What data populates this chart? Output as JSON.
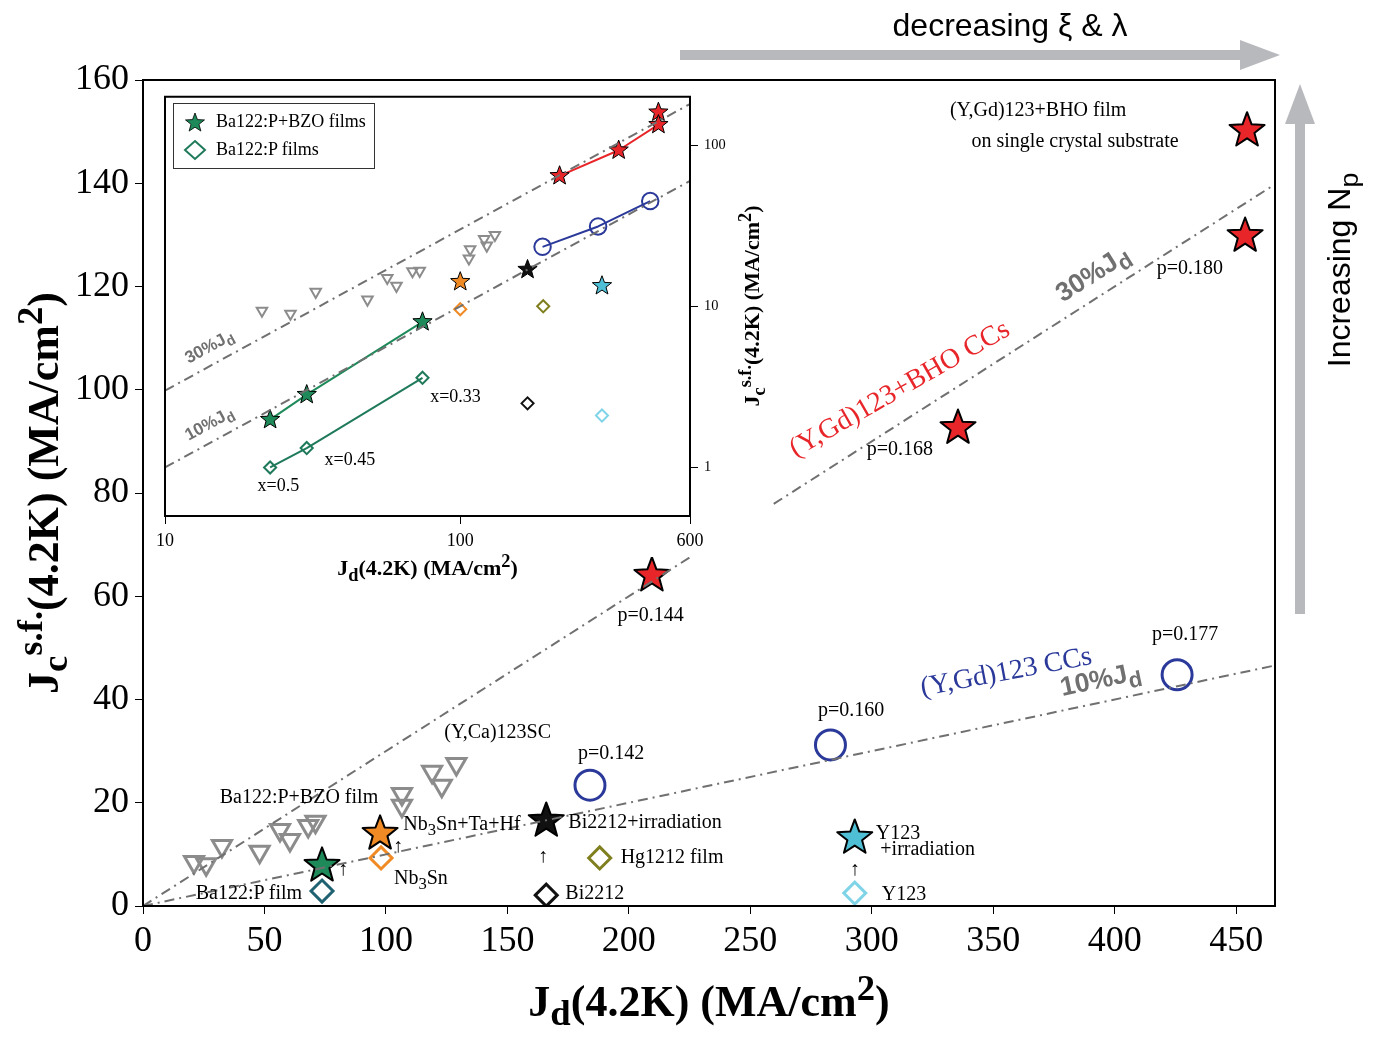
{
  "chart_data": [
    {
      "type": "scatter",
      "xlabel": "J$_{d}$(4.2K) (MA/cm$^{2}$)",
      "ylabel": "J$_{c}$$^{s.f.}$(4.2K) (MA/cm$^{2}$)",
      "xlim": [
        0,
        466
      ],
      "ylim": [
        0,
        160
      ],
      "xticks": [
        0,
        50,
        100,
        150,
        200,
        250,
        300,
        350,
        400,
        450
      ],
      "yticks": [
        0,
        20,
        40,
        60,
        80,
        100,
        120,
        140,
        160
      ],
      "annotations": [
        "decreasing ξ & λ",
        "Increasing N$_{p}$",
        "p=0.144",
        "p=0.168",
        "p=0.180",
        "p=0.177",
        "p=0.160",
        "p=0.142",
        "(Y,Ca)123SC",
        "Ba122:P+BZO film",
        "Ba122:P film",
        "Nb$_{3}$Sn+Ta+Hf",
        "Nb$_{3}$Sn",
        "Bi2212+irradiation",
        "Bi2212",
        "Hg1212 film",
        "Y123",
        "+irradiation",
        "Y123",
        "(Y,Gd)123+BHO film",
        "on single crystal substrate",
        "↑",
        "↑",
        "↑",
        "↑"
      ],
      "series": [
        {
          "type": "line",
          "name": "30%J$_{d}$",
          "color": "#707070",
          "line_style": "dashed",
          "marker": "none",
          "x": [
            0,
            466
          ],
          "values": [
            0,
            139.8
          ]
        },
        {
          "type": "line",
          "name": "10%J$_{d}$",
          "color": "#707070",
          "line_style": "dashed",
          "marker": "none",
          "x": [
            0,
            466
          ],
          "values": [
            0,
            46.6
          ]
        },
        {
          "name": "(Y,Gd)123+BHO CCs",
          "color": "#e8262a",
          "marker": "star",
          "x": [
            209.5,
            335.5,
            453.7
          ],
          "values": [
            64,
            92.6,
            129.8
          ]
        },
        {
          "color": "#e8262a",
          "marker": "star",
          "x": [
            454.5
          ],
          "values": [
            150.2
          ]
        },
        {
          "name": "(Y,Gd)123 CCs",
          "color": "#2b3a9a",
          "marker": "circle",
          "x": [
            184,
            283,
            425.7
          ],
          "values": [
            23.4,
            31.2,
            44.8
          ]
        },
        {
          "color": "#8c8c8c",
          "marker": "triangle",
          "x": [
            21,
            26,
            32.5,
            48,
            56.4,
            60.5,
            68,
            71,
            106.6,
            106.6,
            119,
            123,
            129
          ],
          "values": [
            8.5,
            8.1,
            11.6,
            10.5,
            14.7,
            12.8,
            15.5,
            16.3,
            21.7,
            19.4,
            26,
            23.3,
            27.5
          ]
        },
        {
          "color": "#1e8a5a",
          "marker": "star",
          "x": [
            73.7
          ],
          "values": [
            7.8
          ]
        },
        {
          "color": "#1f6272",
          "marker": "diamond",
          "x": [
            73.7
          ],
          "values": [
            2.9
          ]
        },
        {
          "color": "#f08a24",
          "marker": "star",
          "x": [
            97.6
          ],
          "values": [
            14
          ]
        },
        {
          "color": "#f08a24",
          "marker": "diamond",
          "x": [
            98
          ],
          "values": [
            9.3
          ]
        },
        {
          "color": "#111111",
          "marker": "star",
          "x": [
            166
          ],
          "values": [
            16.5
          ]
        },
        {
          "color": "#111111",
          "marker": "diamond",
          "x": [
            166
          ],
          "values": [
            2.1
          ]
        },
        {
          "color": "#7f7f1f",
          "marker": "diamond",
          "x": [
            188
          ],
          "values": [
            9.3
          ]
        },
        {
          "color": "#4fbfd6",
          "marker": "star",
          "x": [
            293
          ],
          "values": [
            13.2
          ]
        },
        {
          "color": "#80d4e8",
          "marker": "diamond",
          "x": [
            293
          ],
          "values": [
            2.5
          ]
        }
      ]
    },
    {
      "type": "scatter",
      "log": "xy",
      "legend": "top left",
      "xlabel": "J$_{d}$(4.2K) (MA/cm$^{2}$)",
      "ylabel": "J$_{c}$$^{s.f.}$(4.2K) (MA/cm$^{2}$)",
      "xlim": [
        10,
        600
      ],
      "ylim": [
        0.5,
        200
      ],
      "xticks": [
        10,
        100,
        600
      ],
      "yticks": [
        1,
        10,
        100
      ],
      "annotations": [
        "x=0.5",
        "x=0.45",
        "x=0.33"
      ],
      "series": [
        {
          "type": "line",
          "name": "30%J$_{d}$",
          "color": "#707070",
          "line_style": "dashed",
          "marker": "none",
          "x": [
            10,
            600
          ],
          "values": [
            3,
            180
          ]
        },
        {
          "type": "line",
          "name": "10%J$_{d}$",
          "color": "#707070",
          "line_style": "dashed",
          "marker": "none",
          "x": [
            10,
            600
          ],
          "values": [
            1,
            60
          ]
        },
        {
          "type": "line",
          "name": "Ba122:P+BZO films",
          "color": "#1e8a5a",
          "marker": "star",
          "x": [
            22.7,
            30.2,
            74.5
          ],
          "values": [
            1.98,
            2.83,
            8
          ]
        },
        {
          "type": "line",
          "name": "Ba122:P films",
          "color": "#1f7a5a",
          "marker": "diamond",
          "x": [
            22.7,
            30.2,
            74.5
          ],
          "values": [
            1,
            1.32,
            3.6
          ]
        },
        {
          "type": "line",
          "color": "#e8262a",
          "marker": "star",
          "x": [
            217,
            344,
            469
          ],
          "values": [
            64.5,
            93,
            134
          ]
        },
        {
          "color": "#e8262a",
          "marker": "star",
          "x": [
            469
          ],
          "values": [
            160
          ]
        },
        {
          "type": "line",
          "color": "#2b3a9a",
          "marker": "circle",
          "x": [
            190,
            293,
            440
          ],
          "values": [
            23.4,
            31.3,
            45
          ]
        },
        {
          "color": "#8c8c8c",
          "marker": "triangle",
          "x": [
            21.3,
            26.6,
            32.4,
            48.5,
            56.6,
            60.8,
            68.9,
            72.9,
            108,
            107,
            120.5,
            123,
            131
          ],
          "values": [
            9.4,
            9,
            12.3,
            11,
            15,
            13.4,
            16.5,
            16.6,
            22.6,
            19.8,
            26.2,
            23.8,
            27.7
          ]
        },
        {
          "color": "#f08a24",
          "marker": "star",
          "x": [
            100
          ],
          "values": [
            14.2
          ]
        },
        {
          "color": "#f08a24",
          "marker": "diamond",
          "x": [
            100
          ],
          "values": [
            9.6
          ]
        },
        {
          "color": "#111111",
          "marker": "star",
          "x": [
            169
          ],
          "values": [
            16.9
          ]
        },
        {
          "color": "#111111",
          "marker": "diamond",
          "x": [
            169
          ],
          "values": [
            2.5
          ]
        },
        {
          "color": "#7f7f1f",
          "marker": "diamond",
          "x": [
            191
          ],
          "values": [
            10
          ]
        },
        {
          "color": "#4fbfd6",
          "marker": "star",
          "x": [
            302
          ],
          "values": [
            13.4
          ]
        },
        {
          "color": "#80d4e8",
          "marker": "diamond",
          "x": [
            302
          ],
          "values": [
            2.1
          ]
        }
      ]
    }
  ]
}
